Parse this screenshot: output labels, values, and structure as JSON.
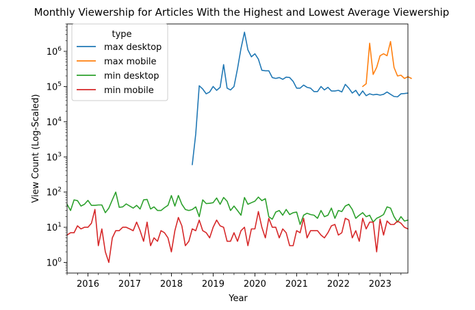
{
  "chart_data": {
    "type": "line",
    "title": "Monthly Viewership for Articles With the Highest and Lowest Average Viewership",
    "xlabel": "Year",
    "ylabel": "View Count (Log-Scaled)",
    "yscale": "log",
    "ylim": [
      0.5,
      6000000
    ],
    "xlim": [
      "2015-07",
      "2023-09"
    ],
    "x_ticks": [
      "2016",
      "2017",
      "2018",
      "2019",
      "2020",
      "2021",
      "2022",
      "2023"
    ],
    "y_ticks": [
      {
        "value": 1,
        "base": "10",
        "exp": "0"
      },
      {
        "value": 10,
        "base": "10",
        "exp": "1"
      },
      {
        "value": 100,
        "base": "10",
        "exp": "2"
      },
      {
        "value": 1000,
        "base": "10",
        "exp": "3"
      },
      {
        "value": 10000,
        "base": "10",
        "exp": "4"
      },
      {
        "value": 100000,
        "base": "10",
        "exp": "5"
      },
      {
        "value": 1000000,
        "base": "10",
        "exp": "6"
      }
    ],
    "legend": {
      "title": "type",
      "position": "top-left"
    },
    "grid": false,
    "series": [
      {
        "name": "max desktop",
        "color": "#1f77b4",
        "start": "2018-07",
        "values": [
          600,
          4500,
          105000,
          85000,
          62000,
          70000,
          100000,
          78000,
          95000,
          420000,
          90000,
          80000,
          100000,
          320000,
          1200000,
          3500000,
          1100000,
          700000,
          850000,
          600000,
          290000,
          280000,
          280000,
          180000,
          170000,
          180000,
          160000,
          185000,
          180000,
          140000,
          90000,
          90000,
          110000,
          95000,
          90000,
          72000,
          72000,
          100000,
          80000,
          95000,
          75000,
          75000,
          78000,
          70000,
          115000,
          90000,
          65000,
          78000,
          55000,
          75000,
          55000,
          62000,
          58000,
          60000,
          57000,
          60000,
          70000,
          60000,
          52000,
          51000,
          62000,
          63000,
          65000
        ]
      },
      {
        "name": "max mobile",
        "color": "#ff7f0e",
        "start": "2022-08",
        "values": [
          100000,
          120000,
          1700000,
          220000,
          350000,
          750000,
          850000,
          750000,
          1900000,
          350000,
          200000,
          210000,
          170000,
          190000,
          170000
        ]
      },
      {
        "name": "min desktop",
        "color": "#2ca02c",
        "start": "2015-07",
        "values": [
          45,
          30,
          60,
          57,
          40,
          45,
          58,
          42,
          42,
          43,
          43,
          26,
          35,
          60,
          100,
          37,
          38,
          46,
          40,
          35,
          42,
          33,
          60,
          62,
          33,
          38,
          30,
          30,
          36,
          42,
          80,
          40,
          80,
          45,
          32,
          30,
          32,
          38,
          20,
          60,
          47,
          48,
          50,
          68,
          45,
          70,
          55,
          30,
          40,
          30,
          22,
          70,
          45,
          50,
          55,
          72,
          57,
          65,
          20,
          17,
          27,
          30,
          22,
          32,
          23,
          26,
          27,
          12,
          22,
          25,
          23,
          22,
          18,
          30,
          20,
          22,
          35,
          18,
          30,
          28,
          40,
          45,
          32,
          18,
          22,
          26,
          20,
          22,
          14,
          18,
          20,
          23,
          38,
          35,
          20,
          14,
          20,
          15,
          16
        ]
      },
      {
        "name": "min mobile",
        "color": "#d62728",
        "start": "2015-07",
        "values": [
          6,
          7,
          7,
          11,
          9,
          10,
          10,
          13,
          32,
          3,
          9,
          2,
          1,
          5,
          8,
          8,
          10,
          10,
          9,
          8,
          14,
          8,
          4,
          14,
          3,
          5,
          4,
          8,
          7,
          5,
          2,
          8,
          19,
          11,
          3,
          4,
          9,
          8,
          16,
          8,
          7,
          5,
          10,
          16,
          11,
          10,
          4,
          4,
          7,
          4,
          8,
          10,
          3,
          9,
          9,
          28,
          10,
          5,
          18,
          10,
          10,
          5,
          9,
          7,
          3,
          3,
          8,
          7,
          18,
          5,
          8,
          8,
          8,
          6,
          5,
          7,
          11,
          12,
          6,
          7,
          18,
          16,
          5,
          8,
          4,
          18,
          9,
          14,
          14,
          2,
          17,
          6,
          15,
          12,
          12,
          15,
          13,
          10,
          9
        ]
      }
    ]
  }
}
